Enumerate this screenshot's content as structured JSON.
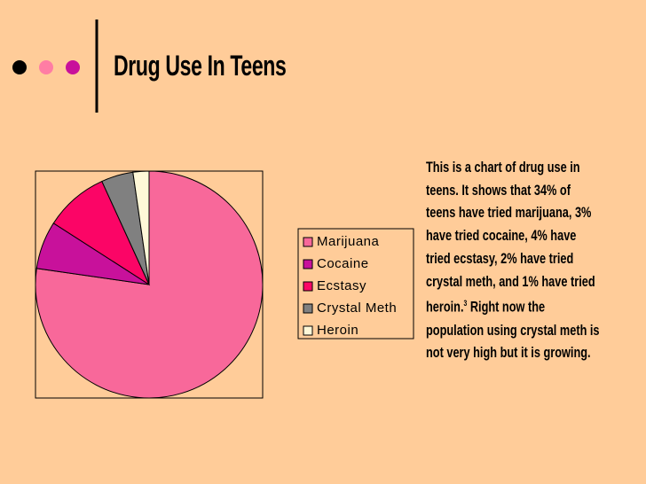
{
  "chart_data": {
    "type": "pie",
    "title": "Drug Use In Teens",
    "categories": [
      "Marijuana",
      "Cocaine",
      "Ecstasy",
      "Crystal Meth",
      "Heroin"
    ],
    "values": [
      34,
      3,
      4,
      2,
      1
    ],
    "colors": [
      "#f8689a",
      "#c8119b",
      "#fb0566",
      "#808080",
      "#fff8d8"
    ],
    "legend": "right",
    "annotation": [
      "This is a chart of drug use in teens. It shows that 34% of teens have tried marijuana, 3% have tried cocaine, 4% have tried ecstasy, 2% have tried crystal meth, and 1% have tried heroin.",
      "3",
      "Right now the population using crystal meth is not very high but it is growing."
    ]
  }
}
